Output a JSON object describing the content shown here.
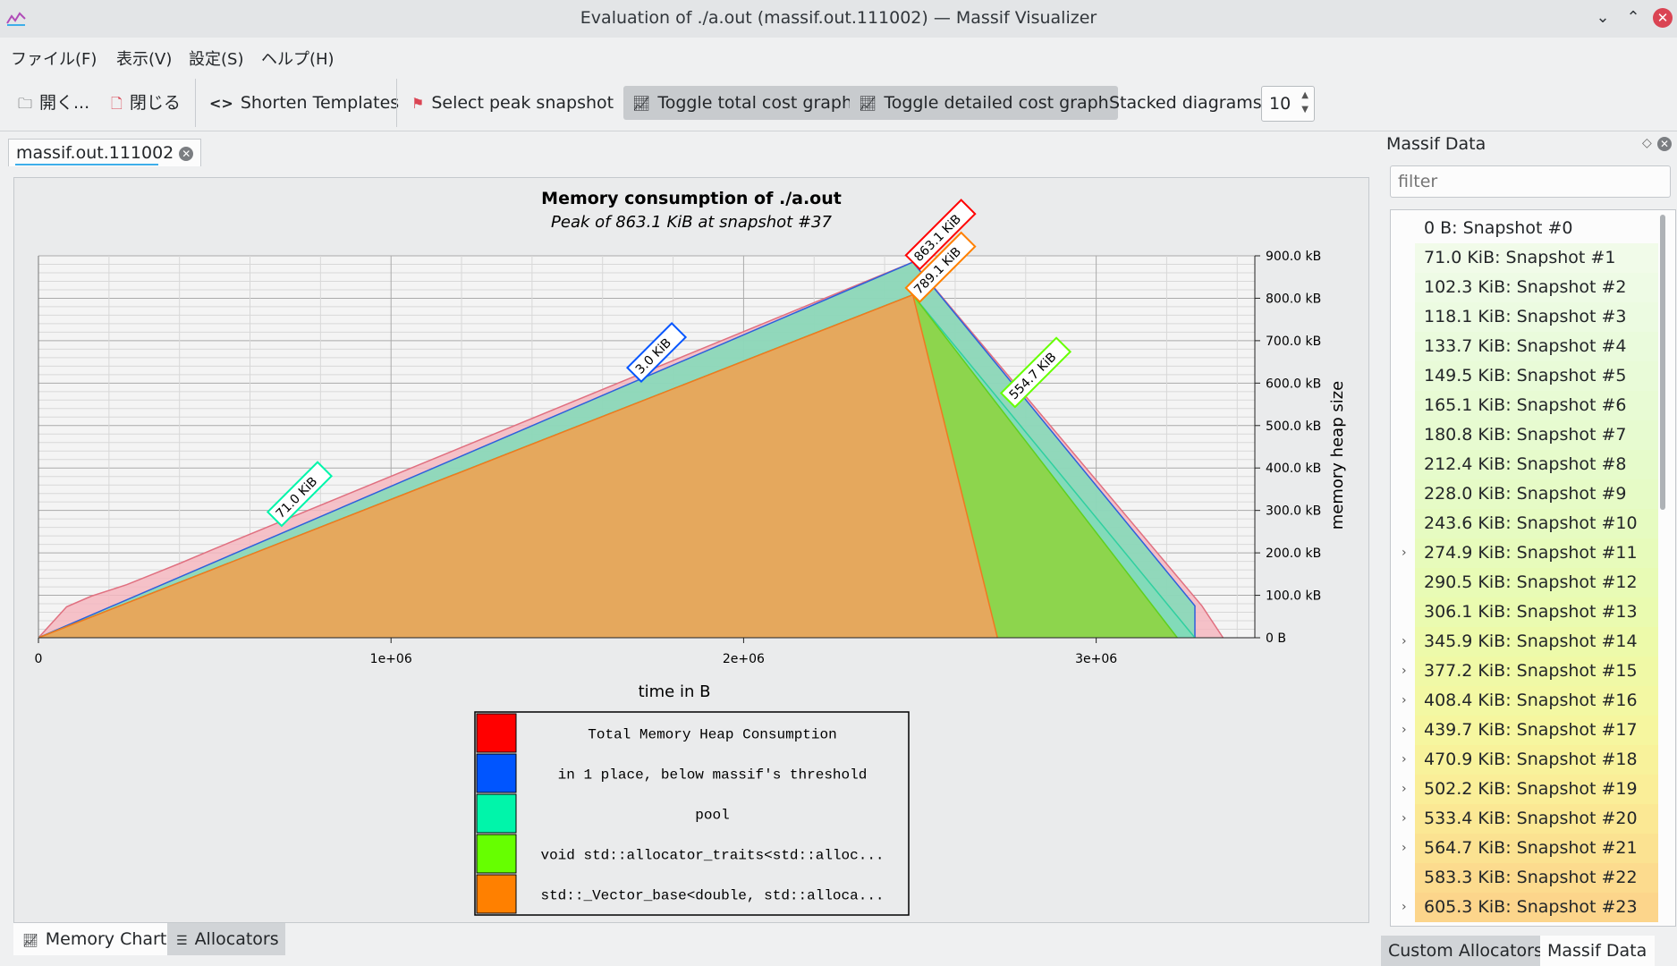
{
  "window": {
    "title": "Evaluation of ./a.out (massif.out.111002) — Massif Visualizer"
  },
  "menu": [
    "ファイル(F)",
    "表示(V)",
    "設定(S)",
    "ヘルプ(H)"
  ],
  "toolbar": {
    "open": "開く...",
    "close": "閉じる",
    "shorten": "Shorten Templates",
    "peak": "Select peak snapshot",
    "toggle_total": "Toggle total cost graph",
    "toggle_detailed": "Toggle detailed cost graph",
    "stacked_label": "Stacked diagrams:",
    "stacked_value": "10"
  },
  "document_tab": "massif.out.111002",
  "chart_data": {
    "type": "area",
    "title": "Memory consumption of ./a.out",
    "subtitle": "Peak of 863.1 KiB at snapshot #37",
    "xlabel": "time in B",
    "ylabel": "memory heap size",
    "xlim": [
      0,
      3450000
    ],
    "ylim": [
      0,
      900
    ],
    "x_ticks": [
      {
        "v": 0,
        "label": "0"
      },
      {
        "v": 1000000,
        "label": "1e+06"
      },
      {
        "v": 2000000,
        "label": "2e+06"
      },
      {
        "v": 3000000,
        "label": "3e+06"
      }
    ],
    "y_ticks": [
      {
        "v": 0,
        "label": "0 B"
      },
      {
        "v": 100,
        "label": "100.0 kB"
      },
      {
        "v": 200,
        "label": "200.0 kB"
      },
      {
        "v": 300,
        "label": "300.0 kB"
      },
      {
        "v": 400,
        "label": "400.0 kB"
      },
      {
        "v": 500,
        "label": "500.0 kB"
      },
      {
        "v": 600,
        "label": "600.0 kB"
      },
      {
        "v": 700,
        "label": "700.0 kB"
      },
      {
        "v": 800,
        "label": "800.0 kB"
      },
      {
        "v": 900,
        "label": "900.0 kB"
      }
    ],
    "grid": true,
    "series": [
      {
        "name": "Total Memory Heap Consumption",
        "color": "#f5b7c0",
        "stroke": "#e07080",
        "points": [
          [
            0,
            0
          ],
          [
            80000,
            73
          ],
          [
            150000,
            98
          ],
          [
            250000,
            125
          ],
          [
            400000,
            175
          ],
          [
            500000,
            210
          ],
          [
            2480000,
            885
          ],
          [
            3300000,
            75
          ],
          [
            3360000,
            0
          ]
        ]
      },
      {
        "name": "in 1 place, below massif's threshold",
        "color": "#7fdcb8",
        "stroke": "#2f5fdc",
        "points": [
          [
            0,
            0
          ],
          [
            2480000,
            885
          ],
          [
            3280000,
            75
          ],
          [
            3280000,
            0
          ]
        ]
      },
      {
        "name": "pool",
        "color": "#7fdcb8",
        "stroke": "#30d0a0",
        "points": [
          [
            0,
            0
          ],
          [
            2480000,
            808
          ],
          [
            3280000,
            0
          ]
        ]
      },
      {
        "name": "void std::allocator_traits<std::alloc...",
        "color": "#8fd33a",
        "stroke": "#60d020",
        "points": [
          [
            0,
            0
          ],
          [
            2480000,
            808
          ],
          [
            3230000,
            0
          ]
        ]
      },
      {
        "name": "std::_Vector_base<double, std::alloca...",
        "color": "#f4a060",
        "stroke": "#f07820",
        "points": [
          [
            0,
            0
          ],
          [
            2480000,
            808
          ],
          [
            2720000,
            0
          ]
        ]
      }
    ],
    "legend": [
      {
        "label": "Total Memory Heap Consumption",
        "color": "#ff0000"
      },
      {
        "label": "in 1 place, below massif's threshold",
        "color": "#0055ff"
      },
      {
        "label": "pool",
        "color": "#00f5aa"
      },
      {
        "label": "void std::allocator_traits<std::alloc...",
        "color": "#66ff00"
      },
      {
        "label": "std::_Vector_base<double, std::alloca...",
        "color": "#ff8000"
      }
    ],
    "annotations": [
      {
        "text": "863.1 KiB",
        "x": 2480000,
        "y": 885,
        "color": "#ff0000"
      },
      {
        "text": "789.1 KiB",
        "x": 2480000,
        "y": 808,
        "color": "#ff8000"
      },
      {
        "text": "3.0 KiB",
        "x": 1690000,
        "y": 620,
        "color": "#0055ff"
      },
      {
        "text": "71.0 KiB",
        "x": 670000,
        "y": 280,
        "color": "#00f5aa"
      },
      {
        "text": "554.7 KiB",
        "x": 2750000,
        "y": 560,
        "color": "#66ff00"
      }
    ]
  },
  "bottom_tabs": [
    "Memory Chart",
    "Allocators"
  ],
  "dock": {
    "title": "Massif Data",
    "filter_placeholder": "filter",
    "snapshots": [
      {
        "label": "0 B: Snapshot #0",
        "expand": false,
        "color": "#fcfcfc"
      },
      {
        "label": "71.0 KiB: Snapshot #1",
        "expand": false,
        "color": "#f1fbe9"
      },
      {
        "label": "102.3 KiB: Snapshot #2",
        "expand": false,
        "color": "#eefbe5"
      },
      {
        "label": "118.1 KiB: Snapshot #3",
        "expand": false,
        "color": "#ecfbe1"
      },
      {
        "label": "133.7 KiB: Snapshot #4",
        "expand": false,
        "color": "#eafbdc"
      },
      {
        "label": "149.5 KiB: Snapshot #5",
        "expand": false,
        "color": "#e9fbd8"
      },
      {
        "label": "165.1 KiB: Snapshot #6",
        "expand": false,
        "color": "#e8fbd4"
      },
      {
        "label": "180.8 KiB: Snapshot #7",
        "expand": false,
        "color": "#e7fbd0"
      },
      {
        "label": "212.4 KiB: Snapshot #8",
        "expand": false,
        "color": "#e6fbcb"
      },
      {
        "label": "228.0 KiB: Snapshot #9",
        "expand": false,
        "color": "#e6fbc6"
      },
      {
        "label": "243.6 KiB: Snapshot #10",
        "expand": false,
        "color": "#e6fbc1"
      },
      {
        "label": "274.9 KiB: Snapshot #11",
        "expand": true,
        "color": "#e7fbbb"
      },
      {
        "label": "290.5 KiB: Snapshot #12",
        "expand": false,
        "color": "#e8fbb5"
      },
      {
        "label": "306.1 KiB: Snapshot #13",
        "expand": false,
        "color": "#eafbb0"
      },
      {
        "label": "345.9 KiB: Snapshot #14",
        "expand": true,
        "color": "#edfaaa"
      },
      {
        "label": "377.2 KiB: Snapshot #15",
        "expand": true,
        "color": "#f0f9a6"
      },
      {
        "label": "408.4 KiB: Snapshot #16",
        "expand": true,
        "color": "#f3f8a3"
      },
      {
        "label": "439.7 KiB: Snapshot #17",
        "expand": true,
        "color": "#f6f69f"
      },
      {
        "label": "470.9 KiB: Snapshot #18",
        "expand": true,
        "color": "#f8f29b"
      },
      {
        "label": "502.2 KiB: Snapshot #19",
        "expand": true,
        "color": "#faee98"
      },
      {
        "label": "533.4 KiB: Snapshot #20",
        "expand": true,
        "color": "#fbe894"
      },
      {
        "label": "564.7 KiB: Snapshot #21",
        "expand": true,
        "color": "#fbe291"
      },
      {
        "label": "583.3 KiB: Snapshot #22",
        "expand": false,
        "color": "#fcdb8e"
      },
      {
        "label": "605.3 KiB: Snapshot #23",
        "expand": true,
        "color": "#fcd58b"
      }
    ]
  },
  "dock_tabs": [
    "Custom Allocators",
    "Massif Data"
  ]
}
